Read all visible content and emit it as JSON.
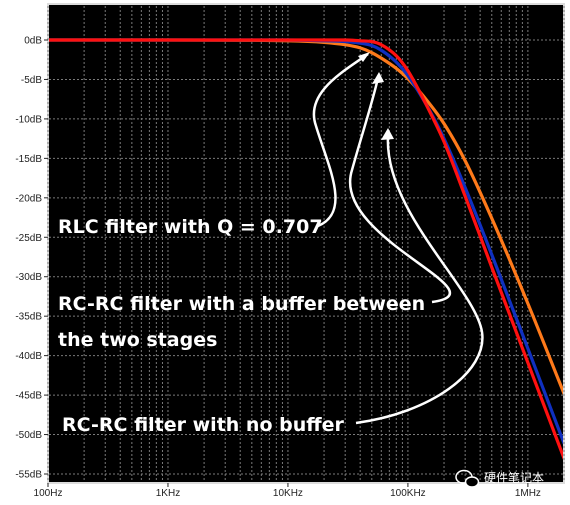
{
  "chart_data": {
    "type": "line",
    "x_scale": "log",
    "xlim": [
      100,
      2000000
    ],
    "ylim": [
      -55,
      0
    ],
    "grid": true,
    "x_ticks": [
      {
        "value": 100,
        "label": "100Hz"
      },
      {
        "value": 1000,
        "label": "1KHz"
      },
      {
        "value": 10000,
        "label": "10KHz"
      },
      {
        "value": 100000,
        "label": "100KHz"
      },
      {
        "value": 1000000,
        "label": "1MHz"
      }
    ],
    "y_ticks": [
      {
        "value": 0,
        "label": "0dB"
      },
      {
        "value": -5,
        "label": "-5dB"
      },
      {
        "value": -10,
        "label": "-10dB"
      },
      {
        "value": -15,
        "label": "-15dB"
      },
      {
        "value": -20,
        "label": "-20dB"
      },
      {
        "value": -25,
        "label": "-25dB"
      },
      {
        "value": -30,
        "label": "-30dB"
      },
      {
        "value": -35,
        "label": "-35dB"
      },
      {
        "value": -40,
        "label": "-40dB"
      },
      {
        "value": -45,
        "label": "-45dB"
      },
      {
        "value": -50,
        "label": "-50dB"
      },
      {
        "value": -55,
        "label": "-55dB"
      }
    ],
    "series": [
      {
        "color": "#ff7a1a",
        "x": [
          100,
          1000,
          10000,
          20000,
          30000,
          40000,
          50000,
          60000,
          80000,
          100000,
          150000,
          200000,
          300000,
          500000,
          1000000,
          2000000
        ],
        "y": [
          0,
          0,
          -0.1,
          -0.3,
          -0.6,
          -1.0,
          -1.6,
          -2.3,
          -3.6,
          -4.9,
          -8.0,
          -10.6,
          -15.3,
          -22.6,
          -33.4,
          -44.8
        ]
      },
      {
        "color": "#1030c0",
        "x": [
          100,
          1000,
          10000,
          20000,
          30000,
          40000,
          50000,
          60000,
          80000,
          100000,
          150000,
          200000,
          300000,
          500000,
          1000000,
          2000000
        ],
        "y": [
          0,
          0,
          0,
          -0.1,
          -0.2,
          -0.4,
          -0.7,
          -1.3,
          -2.8,
          -4.5,
          -8.8,
          -12.5,
          -18.7,
          -27.2,
          -39.1,
          -51.1
        ]
      },
      {
        "color": "#ff1010",
        "x": [
          100,
          1000,
          10000,
          20000,
          30000,
          40000,
          50000,
          60000,
          80000,
          100000,
          150000,
          200000,
          300000,
          500000,
          1000000,
          2000000
        ],
        "y": [
          0,
          0,
          0,
          0,
          0,
          -0.1,
          -0.2,
          -0.6,
          -2.0,
          -3.9,
          -8.9,
          -12.9,
          -19.8,
          -28.8,
          -40.9,
          -53.0
        ]
      }
    ],
    "annotations": [
      {
        "text": "RLC filter with Q = 0.707"
      },
      {
        "text": "RC-RC filter with a buffer between"
      },
      {
        "text": "the two stages"
      },
      {
        "text": "RC-RC filter with no buffer"
      }
    ]
  },
  "watermark": {
    "text": "硬件笔记本",
    "icon": "wechat-icon"
  },
  "colors": {
    "plot_bg": "#000000",
    "grid": "#7a7a7a",
    "frame": "#dcdcdc"
  }
}
